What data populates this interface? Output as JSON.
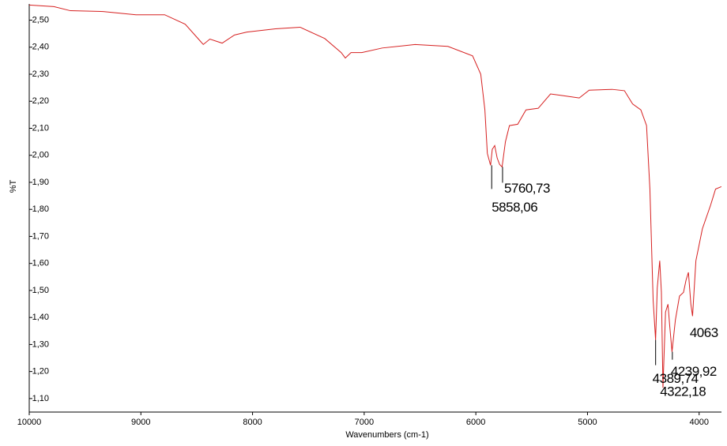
{
  "chart_data": {
    "type": "line",
    "xlabel": "Wavenumbers (cm-1)",
    "ylabel": "%T",
    "xlim": [
      10000,
      3800
    ],
    "ylim": [
      1.05,
      2.56
    ],
    "xticks": [
      10000,
      9000,
      8000,
      7000,
      6000,
      5000,
      4000
    ],
    "yticks": [
      {
        "value": 1.1,
        "label": "1,10"
      },
      {
        "value": 1.2,
        "label": "1,20"
      },
      {
        "value": 1.3,
        "label": "1,30"
      },
      {
        "value": 1.4,
        "label": "1,40"
      },
      {
        "value": 1.5,
        "label": "1,50"
      },
      {
        "value": 1.6,
        "label": "1,60"
      },
      {
        "value": 1.7,
        "label": "1,70"
      },
      {
        "value": 1.8,
        "label": "1,80"
      },
      {
        "value": 1.9,
        "label": "1,90"
      },
      {
        "value": 2.0,
        "label": "2,00"
      },
      {
        "value": 2.1,
        "label": "2,10"
      },
      {
        "value": 2.2,
        "label": "2,20"
      },
      {
        "value": 2.3,
        "label": "2,30"
      },
      {
        "value": 2.4,
        "label": "2,40"
      },
      {
        "value": 2.5,
        "label": "2,50"
      }
    ],
    "series": [
      {
        "color": "#d62020",
        "x": [
          10000,
          9779,
          9632,
          9338,
          9044,
          8787,
          8603,
          8441,
          8382,
          8272,
          8162,
          8051,
          7794,
          7574,
          7353,
          7206,
          7169,
          7118,
          7022,
          6838,
          6544,
          6250,
          6029,
          5956,
          5919,
          5897,
          5868,
          5853,
          5831,
          5809,
          5787,
          5765,
          5735,
          5699,
          5625,
          5551,
          5441,
          5331,
          5221,
          5074,
          4985,
          4779,
          4669,
          4596,
          4522,
          4471,
          4441,
          4412,
          4390,
          4375,
          4353,
          4338,
          4324,
          4301,
          4279,
          4265,
          4243,
          4213,
          4176,
          4140,
          4118,
          4096,
          4074,
          4059,
          4029,
          3971,
          3897,
          3853,
          3801
        ],
        "values": [
          2.556,
          2.55,
          2.535,
          2.532,
          2.52,
          2.52,
          2.485,
          2.41,
          2.43,
          2.415,
          2.445,
          2.456,
          2.468,
          2.474,
          2.432,
          2.38,
          2.36,
          2.38,
          2.38,
          2.397,
          2.41,
          2.403,
          2.368,
          2.3,
          2.168,
          2.007,
          1.963,
          2.022,
          2.036,
          1.99,
          1.966,
          1.957,
          2.05,
          2.11,
          2.115,
          2.168,
          2.174,
          2.227,
          2.221,
          2.212,
          2.241,
          2.244,
          2.239,
          2.19,
          2.168,
          2.11,
          1.875,
          1.464,
          1.317,
          1.51,
          1.61,
          1.493,
          1.14,
          1.42,
          1.449,
          1.376,
          1.273,
          1.39,
          1.479,
          1.493,
          1.537,
          1.567,
          1.449,
          1.405,
          1.61,
          1.728,
          1.816,
          1.875,
          1.884
        ]
      }
    ],
    "annotations": [
      {
        "text": "5760,73",
        "x": 5760.73,
        "y": 1.957
      },
      {
        "text": "5858,06",
        "x": 5858.06,
        "y": 1.963
      },
      {
        "text": "4389,74",
        "x": 4389.74,
        "y": 1.317
      },
      {
        "text": "4322,18",
        "x": 4322.18,
        "y": 1.14
      },
      {
        "text": "4239,92",
        "x": 4239.92,
        "y": 1.273
      },
      {
        "text": "4063",
        "x": 4063,
        "y": 1.405
      }
    ]
  }
}
